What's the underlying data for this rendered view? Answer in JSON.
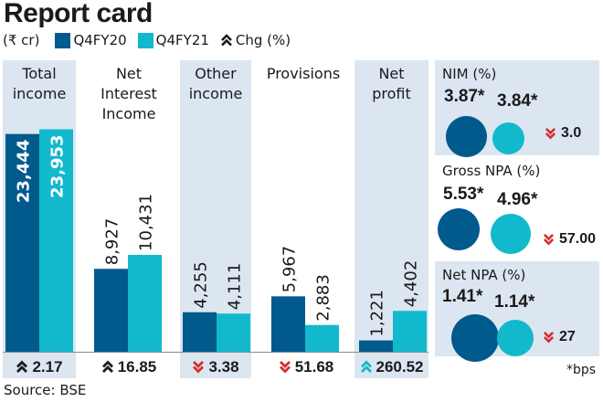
{
  "title": "Report card",
  "legend": {
    "unit": "(₹ cr)",
    "series1": "Q4FY20",
    "series2": "Q4FY21",
    "change": "Chg (%)",
    "change_icon": "double-chevron-up-icon"
  },
  "colors": {
    "q4fy20": "#005a8c",
    "q4fy21": "#12b9cc",
    "shade": "#dce6f1",
    "down": "#d32f2f",
    "up_dark": "#1a1a1a",
    "up_accent": "#12b9cc"
  },
  "source": "Source: BSE",
  "footnote": "*bps",
  "chart_data": {
    "type": "bar",
    "title": "Report card",
    "unit": "₹ cr",
    "categories": [
      "Total income",
      "Net Interest Income",
      "Other income",
      "Provisions",
      "Net profit"
    ],
    "category_lines": [
      [
        "Total",
        "income"
      ],
      [
        "Net",
        "Interest",
        "Income"
      ],
      [
        "Other",
        "income"
      ],
      [
        "Provisions"
      ],
      [
        "Net",
        "profit"
      ]
    ],
    "series": [
      {
        "name": "Q4FY20",
        "values": [
          23444,
          8927,
          4255,
          5967,
          1221
        ],
        "labels": [
          "23,444",
          "8,927",
          "4,255",
          "5,967",
          "1,221"
        ]
      },
      {
        "name": "Q4FY21",
        "values": [
          23953,
          10431,
          4111,
          2883,
          4402
        ],
        "labels": [
          "23,953",
          "10,431",
          "4,111",
          "2,883",
          "4,402"
        ]
      }
    ],
    "change_pct": [
      {
        "value": "2.17",
        "direction": "up",
        "icon": "double-chevron-up-icon",
        "color": "dark"
      },
      {
        "value": "16.85",
        "direction": "up",
        "icon": "double-chevron-up-icon",
        "color": "dark"
      },
      {
        "value": "3.38",
        "direction": "down",
        "icon": "double-chevron-down-icon",
        "color": "red"
      },
      {
        "value": "51.68",
        "direction": "down",
        "icon": "double-chevron-down-icon",
        "color": "red"
      },
      {
        "value": "260.52",
        "direction": "up",
        "icon": "double-chevron-up-icon",
        "color": "accent"
      }
    ],
    "xlabel": "",
    "ylabel": "",
    "ylim": [
      0,
      24000
    ],
    "grid": false,
    "legend_position": "top-left"
  },
  "ratios": [
    {
      "title": "NIM (%)",
      "q4fy20": "3.87*",
      "q4fy21": "3.84*",
      "v20": 3.87,
      "v21": 3.84,
      "change": "3.0",
      "direction": "down"
    },
    {
      "title": "Gross NPA (%)",
      "q4fy20": "5.53*",
      "q4fy21": "4.96*",
      "v20": 5.53,
      "v21": 4.96,
      "change": "57.00",
      "direction": "down"
    },
    {
      "title": "Net NPA (%)",
      "q4fy20": "1.41*",
      "q4fy21": "1.14*",
      "v20": 1.41,
      "v21": 1.14,
      "change": "27",
      "direction": "down"
    }
  ]
}
